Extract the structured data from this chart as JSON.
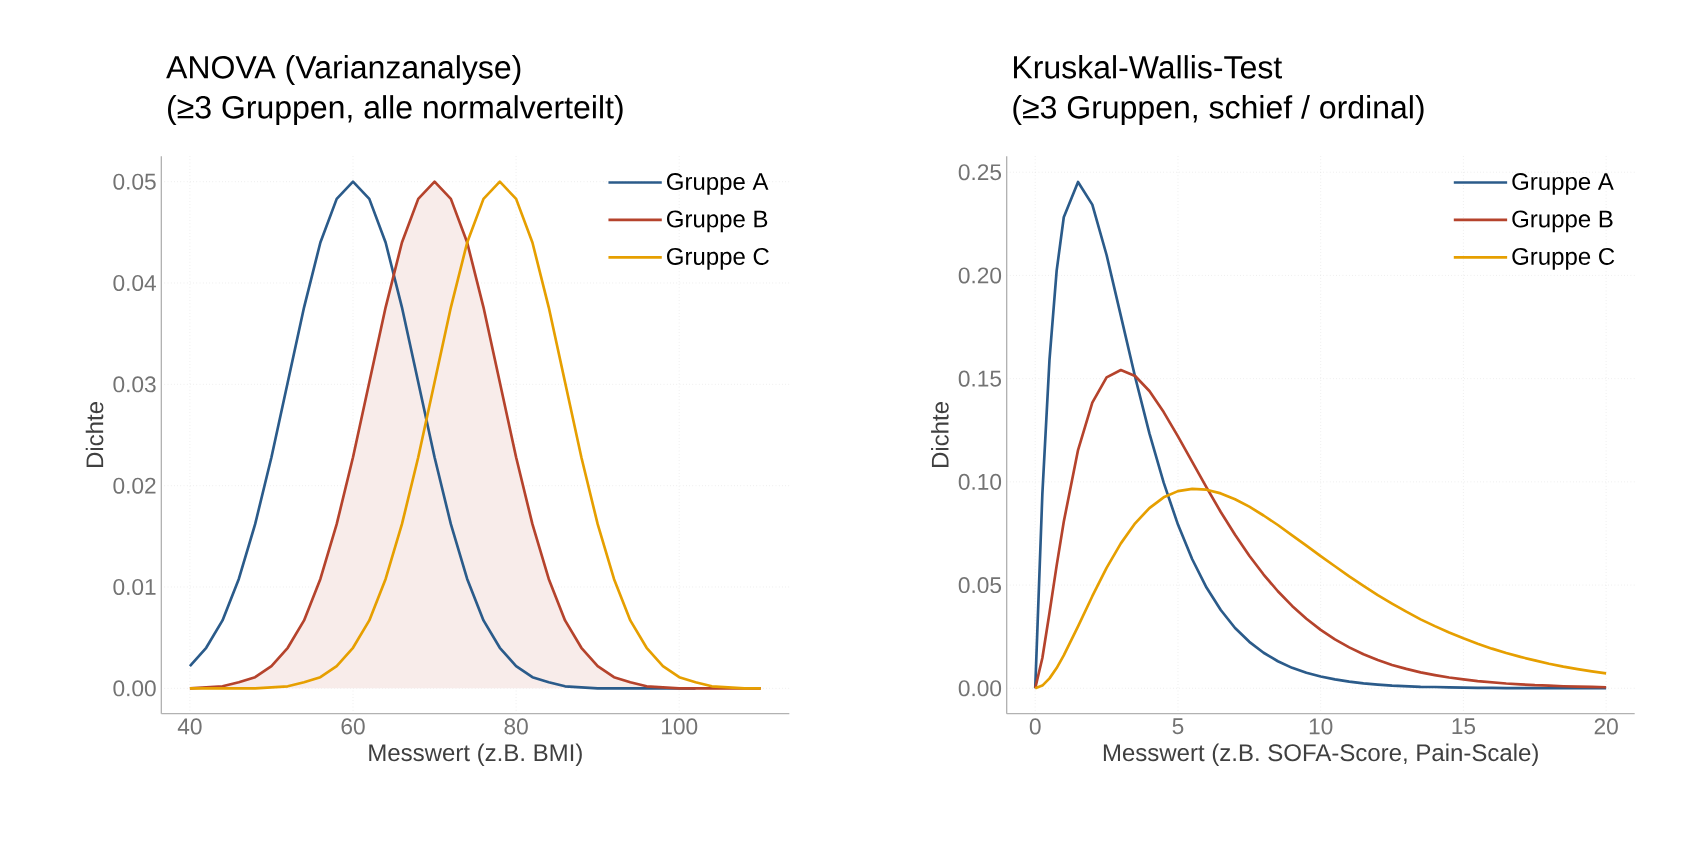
{
  "chart_data": [
    {
      "type": "line",
      "title": "ANOVA (Varianzanalyse)",
      "subtitle": "(≥3 Gruppen, alle normalverteilt)",
      "xlabel": "Messwert (z.B. BMI)",
      "ylabel": "Dichte",
      "x": [
        40,
        42,
        44,
        46,
        48,
        50,
        52,
        54,
        56,
        58,
        60,
        62,
        64,
        66,
        68,
        70,
        72,
        74,
        76,
        78,
        80,
        82,
        84,
        86,
        88,
        90,
        92,
        94,
        96,
        98,
        100,
        102,
        104,
        106,
        108,
        110
      ],
      "series": [
        {
          "name": "Gruppe A",
          "color": "#2b5b8a",
          "values": [
            0.0022,
            0.004,
            0.0067,
            0.0108,
            0.0162,
            0.0228,
            0.0302,
            0.0376,
            0.044,
            0.0483,
            0.05,
            0.0483,
            0.044,
            0.0376,
            0.0302,
            0.0228,
            0.0162,
            0.0108,
            0.0067,
            0.004,
            0.0022,
            0.0011,
            0.0006,
            0.0002,
            0.0001,
            0,
            0,
            0,
            0,
            0,
            0,
            0,
            null,
            null,
            null,
            null
          ]
        },
        {
          "name": "Gruppe B",
          "color": "#b5432c",
          "values": [
            0,
            0.0001,
            0.0002,
            0.0006,
            0.0011,
            0.0022,
            0.004,
            0.0067,
            0.0108,
            0.0162,
            0.0228,
            0.0302,
            0.0376,
            0.044,
            0.0483,
            0.05,
            0.0483,
            0.044,
            0.0376,
            0.0302,
            0.0228,
            0.0162,
            0.0108,
            0.0067,
            0.004,
            0.0022,
            0.0011,
            0.0006,
            0.0002,
            0.0001,
            0,
            0,
            0,
            0,
            0,
            0
          ],
          "lower": [
            0,
            0,
            0,
            0,
            0,
            0,
            0,
            0,
            0,
            0,
            0,
            0,
            0,
            0,
            0,
            0,
            0,
            0,
            0,
            0,
            0,
            0,
            0,
            0,
            0,
            0,
            0,
            0,
            0,
            0,
            0,
            0,
            0,
            0,
            0,
            0
          ],
          "upper": [
            0,
            0.0001,
            0.0002,
            0.0006,
            0.0011,
            0.0022,
            0.004,
            0.0067,
            0.0108,
            0.0162,
            0.0228,
            0.0302,
            0.0376,
            0.044,
            0.0483,
            0.05,
            0.0483,
            0.044,
            0.0376,
            0.0302,
            0.0228,
            0.0162,
            0.0108,
            0.0067,
            0.004,
            0.0022,
            0.0011,
            0.0006,
            0.0002,
            0.0001,
            0,
            0,
            0,
            0,
            0,
            0
          ]
        },
        {
          "name": "Gruppe C",
          "color": "#e69f00",
          "values": [
            0,
            0,
            0,
            0,
            0,
            0.0001,
            0.0002,
            0.0006,
            0.0011,
            0.0022,
            0.004,
            0.0067,
            0.0108,
            0.0162,
            0.0228,
            0.0302,
            0.0376,
            0.044,
            0.0483,
            0.05,
            0.0483,
            0.044,
            0.0376,
            0.0302,
            0.0228,
            0.0162,
            0.0108,
            0.0067,
            0.004,
            0.0022,
            0.0011,
            0.0006,
            0.0002,
            0.0001,
            0,
            0
          ]
        }
      ],
      "xlim": [
        36.5,
        113.5
      ],
      "ylim": [
        -0.0025,
        0.0525
      ],
      "xticks": [
        40,
        60,
        80,
        100
      ],
      "yticks": [
        {
          "value": 0,
          "label": "0.00"
        },
        {
          "value": 0.01,
          "label": "0.01"
        },
        {
          "value": 0.02,
          "label": "0.02"
        },
        {
          "value": 0.03,
          "label": "0.03"
        },
        {
          "value": 0.04,
          "label": "0.04"
        },
        {
          "value": 0.05,
          "label": "0.05"
        }
      ],
      "grid": true,
      "legend": "top right"
    },
    {
      "type": "line",
      "title": "Kruskal-Wallis-Test",
      "subtitle": "(≥3 Gruppen, schief / ordinal)",
      "xlabel": "Messwert (z.B. SOFA-Score, Pain-Scale)",
      "ylabel": "Dichte",
      "x": [
        0,
        0.25,
        0.5,
        0.75,
        1,
        1.5,
        2,
        2.5,
        3,
        3.5,
        4,
        4.5,
        5,
        5.5,
        6,
        6.5,
        7,
        7.5,
        8,
        8.5,
        9,
        9.5,
        10,
        10.5,
        11,
        11.5,
        12,
        12.5,
        13,
        13.5,
        14,
        14.5,
        15,
        15.5,
        16,
        16.5,
        17,
        17.5,
        18,
        18.5,
        19,
        19.5,
        20
      ],
      "series": [
        {
          "name": "Gruppe A",
          "color": "#2b5b8a",
          "values": [
            0,
            0.0941,
            0.1592,
            0.2022,
            0.2282,
            0.2453,
            0.2343,
            0.2099,
            0.1804,
            0.1508,
            0.1235,
            0.0996,
            0.0793,
            0.0625,
            0.0488,
            0.0379,
            0.0292,
            0.0225,
            0.0172,
            0.0131,
            0.0099,
            0.0075,
            0.0057,
            0.0043,
            0.0032,
            0.0024,
            0.0018,
            0.0013,
            0.001,
            0.0007,
            0.0006,
            0.0004,
            0.0003,
            0.0002,
            0.0002,
            0.0001,
            0.0001,
            0.0001,
            0,
            0,
            0,
            0,
            0
          ]
        },
        {
          "name": "Gruppe B",
          "color": "#b5432c",
          "values": [
            0,
            0.0147,
            0.0366,
            0.0594,
            0.0807,
            0.1154,
            0.1384,
            0.1506,
            0.1542,
            0.1513,
            0.144,
            0.1338,
            0.122,
            0.1097,
            0.0973,
            0.0854,
            0.0744,
            0.0642,
            0.0551,
            0.047,
            0.0399,
            0.0337,
            0.0283,
            0.0237,
            0.0198,
            0.0165,
            0.0137,
            0.0113,
            0.0094,
            0.0077,
            0.0064,
            0.0052,
            0.0043,
            0.0035,
            0.0029,
            0.0023,
            0.0019,
            0.0015,
            0.0013,
            0.001,
            0.0008,
            0.0007,
            0.0005
          ]
        },
        {
          "name": "Gruppe C",
          "color": "#e69f00",
          "values": [
            0,
            0.0013,
            0.0048,
            0.0098,
            0.0159,
            0.03,
            0.0446,
            0.0583,
            0.0702,
            0.0799,
            0.0873,
            0.0925,
            0.0955,
            0.0966,
            0.0962,
            0.0944,
            0.0916,
            0.088,
            0.0837,
            0.0791,
            0.0741,
            0.0691,
            0.064,
            0.0591,
            0.0542,
            0.0496,
            0.0451,
            0.041,
            0.0371,
            0.0334,
            0.0301,
            0.027,
            0.0242,
            0.0216,
            0.0192,
            0.0171,
            0.0152,
            0.0135,
            0.0119,
            0.0105,
            0.0093,
            0.0082,
            0.0072
          ]
        }
      ],
      "xlim": [
        -1,
        21
      ],
      "ylim": [
        -0.0123,
        0.2577
      ],
      "xticks": [
        0,
        5,
        10,
        15,
        20
      ],
      "yticks": [
        {
          "value": 0,
          "label": "0.00"
        },
        {
          "value": 0.05,
          "label": "0.05"
        },
        {
          "value": 0.1,
          "label": "0.10"
        },
        {
          "value": 0.15,
          "label": "0.15"
        },
        {
          "value": 0.2,
          "label": "0.20"
        },
        {
          "value": 0.25,
          "label": "0.25"
        }
      ],
      "grid": true,
      "legend": "top right"
    }
  ]
}
